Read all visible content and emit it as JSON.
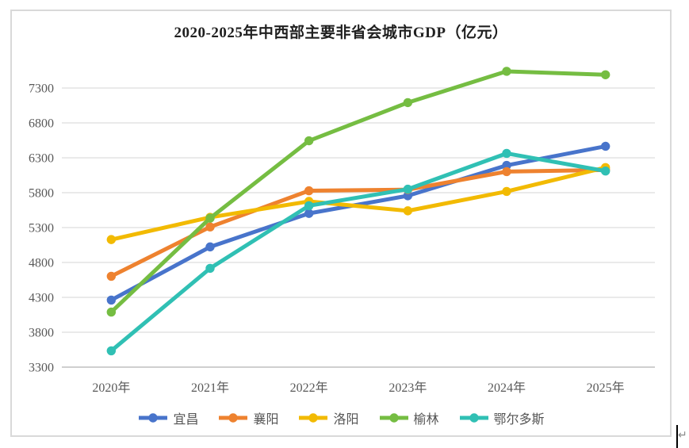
{
  "chart_data": {
    "type": "line",
    "title": "2020-2025年中西部主要非省会城市GDP（亿元）",
    "categories": [
      "2020年",
      "2021年",
      "2022年",
      "2023年",
      "2024年",
      "2025年"
    ],
    "series": [
      {
        "id": "yichang",
        "name": "宜昌",
        "color": "#4874CB",
        "values": [
          4261,
          5023,
          5503,
          5756,
          6191,
          6465
        ]
      },
      {
        "id": "xiangyang",
        "name": "襄阳",
        "color": "#EE822F",
        "values": [
          4602,
          5309,
          5828,
          5844,
          6102,
          6125
        ]
      },
      {
        "id": "luoyang",
        "name": "洛阳",
        "color": "#F2BA02",
        "values": [
          5128,
          5447,
          5675,
          5540,
          5818,
          6160
        ]
      },
      {
        "id": "yulin",
        "name": "榆林",
        "color": "#75BD42",
        "values": [
          4089,
          5435,
          6544,
          7091,
          7539,
          7490
        ]
      },
      {
        "id": "eerduosi",
        "name": "鄂尔多斯",
        "color": "#30C0B4",
        "values": [
          3534,
          4716,
          5613,
          5850,
          6363,
          6110
        ]
      }
    ],
    "yticks": [
      3300,
      3800,
      4300,
      4800,
      5300,
      5800,
      6300,
      6800,
      7300
    ],
    "ylim": [
      3300,
      7300
    ],
    "xlabel": "",
    "ylabel": "",
    "grid": true,
    "legend_position": "bottom",
    "gridline_color": "#e3e3e3",
    "axis_line_color": "#bfbfbf",
    "axis_label_color": "#595959"
  },
  "document": {
    "return_mark": "↵"
  }
}
